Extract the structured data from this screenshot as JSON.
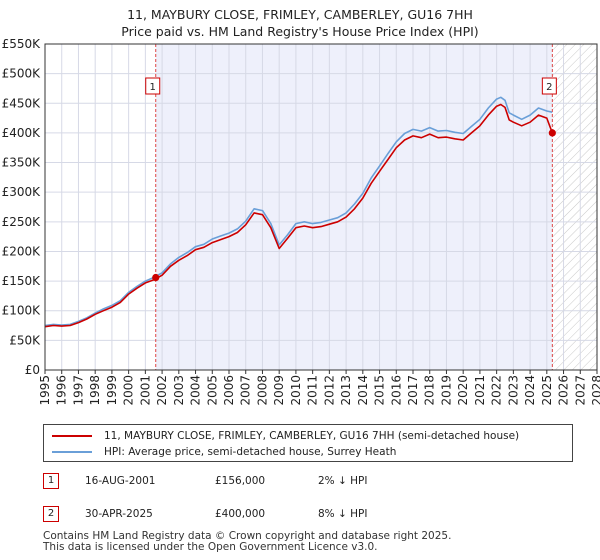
{
  "title_line1": "11, MAYBURY CLOSE, FRIMLEY, CAMBERLEY, GU16 7HH",
  "title_line2": "Price paid vs. HM Land Registry's House Price Index (HPI)",
  "colors": {
    "property": "#cc0000",
    "hpi": "#6a9fd8",
    "shade": "#eef0fb",
    "grid": "#d6d9e6"
  },
  "chart_data": {
    "type": "line",
    "title": "11, MAYBURY CLOSE, FRIMLEY, CAMBERLEY, GU16 7HH — Price paid vs. HM Land Registry's House Price Index (HPI)",
    "xlabel": "",
    "ylabel": "",
    "xlim": [
      1995,
      2028
    ],
    "ylim": [
      0,
      550000
    ],
    "x_ticks": [
      1995,
      1996,
      1997,
      1998,
      1999,
      2000,
      2001,
      2002,
      2003,
      2004,
      2005,
      2006,
      2007,
      2008,
      2009,
      2010,
      2011,
      2012,
      2013,
      2014,
      2015,
      2016,
      2017,
      2018,
      2019,
      2020,
      2021,
      2022,
      2023,
      2024,
      2025,
      2026,
      2027,
      2028
    ],
    "y_ticks": [
      {
        "value": 0,
        "label": "£0"
      },
      {
        "value": 50000,
        "label": "£50K"
      },
      {
        "value": 100000,
        "label": "£100K"
      },
      {
        "value": 150000,
        "label": "£150K"
      },
      {
        "value": 200000,
        "label": "£200K"
      },
      {
        "value": 250000,
        "label": "£250K"
      },
      {
        "value": 300000,
        "label": "£300K"
      },
      {
        "value": 350000,
        "label": "£350K"
      },
      {
        "value": 400000,
        "label": "£400K"
      },
      {
        "value": 450000,
        "label": "£450K"
      },
      {
        "value": 500000,
        "label": "£500K"
      },
      {
        "value": 550000,
        "label": "£550K"
      }
    ],
    "shaded_region": [
      2001.62,
      2025.33
    ],
    "hatched_region": [
      2025.33,
      2028
    ],
    "series": [
      {
        "name": "11, MAYBURY CLOSE, FRIMLEY, CAMBERLEY, GU16 7HH (semi-detached house)",
        "color": "#cc0000",
        "x": [
          1995.0,
          1995.5,
          1996.0,
          1996.5,
          1997.0,
          1997.5,
          1998.0,
          1998.5,
          1999.0,
          1999.5,
          2000.0,
          2000.5,
          2001.0,
          2001.5,
          2002.0,
          2002.5,
          2003.0,
          2003.5,
          2004.0,
          2004.5,
          2005.0,
          2005.5,
          2006.0,
          2006.5,
          2007.0,
          2007.5,
          2008.0,
          2008.5,
          2009.0,
          2009.5,
          2010.0,
          2010.5,
          2011.0,
          2011.5,
          2012.0,
          2012.5,
          2013.0,
          2013.5,
          2014.0,
          2014.5,
          2015.0,
          2015.5,
          2016.0,
          2016.5,
          2017.0,
          2017.5,
          2018.0,
          2018.5,
          2019.0,
          2019.5,
          2020.0,
          2020.5,
          2021.0,
          2021.5,
          2022.0,
          2022.25,
          2022.5,
          2022.75,
          2023.0,
          2023.5,
          2024.0,
          2024.5,
          2025.0,
          2025.33
        ],
        "values": [
          73000,
          75000,
          74000,
          75000,
          80000,
          86000,
          94000,
          100000,
          106000,
          114000,
          128000,
          138000,
          147000,
          152000,
          160000,
          175000,
          185000,
          193000,
          203000,
          207000,
          215000,
          220000,
          225000,
          232000,
          245000,
          265000,
          262000,
          240000,
          205000,
          222000,
          240000,
          243000,
          240000,
          242000,
          246000,
          250000,
          258000,
          272000,
          290000,
          315000,
          335000,
          355000,
          375000,
          388000,
          395000,
          392000,
          398000,
          392000,
          393000,
          390000,
          388000,
          400000,
          412000,
          430000,
          445000,
          448000,
          443000,
          422000,
          418000,
          412000,
          418000,
          430000,
          425000,
          400000
        ]
      },
      {
        "name": "HPI: Average price, semi-detached house, Surrey Heath",
        "color": "#6a9fd8",
        "x": [
          1995.0,
          1995.5,
          1996.0,
          1996.5,
          1997.0,
          1997.5,
          1998.0,
          1998.5,
          1999.0,
          1999.5,
          2000.0,
          2000.5,
          2001.0,
          2001.5,
          2002.0,
          2002.5,
          2003.0,
          2003.5,
          2004.0,
          2004.5,
          2005.0,
          2005.5,
          2006.0,
          2006.5,
          2007.0,
          2007.5,
          2008.0,
          2008.5,
          2009.0,
          2009.5,
          2010.0,
          2010.5,
          2011.0,
          2011.5,
          2012.0,
          2012.5,
          2013.0,
          2013.5,
          2014.0,
          2014.5,
          2015.0,
          2015.5,
          2016.0,
          2016.5,
          2017.0,
          2017.5,
          2018.0,
          2018.5,
          2019.0,
          2019.5,
          2020.0,
          2020.5,
          2021.0,
          2021.5,
          2022.0,
          2022.25,
          2022.5,
          2022.75,
          2023.0,
          2023.5,
          2024.0,
          2024.5,
          2025.0,
          2025.33
        ],
        "values": [
          75000,
          77000,
          76000,
          77000,
          82000,
          88000,
          96000,
          103000,
          109000,
          117000,
          131000,
          141000,
          150000,
          156000,
          164000,
          179000,
          190000,
          198000,
          208000,
          212000,
          221000,
          226000,
          231000,
          238000,
          251000,
          272000,
          269000,
          247000,
          211000,
          228000,
          247000,
          250000,
          247000,
          249000,
          253000,
          257000,
          265000,
          280000,
          298000,
          324000,
          344000,
          365000,
          385000,
          399000,
          406000,
          403000,
          409000,
          403000,
          404000,
          401000,
          399000,
          411000,
          423000,
          442000,
          457000,
          460000,
          455000,
          434000,
          430000,
          423000,
          430000,
          442000,
          437000,
          435000
        ]
      }
    ],
    "sales": [
      {
        "marker": "1",
        "x": 2001.62,
        "value": 156000,
        "date": "16-AUG-2001",
        "price": "£156,000",
        "hpi_diff": "2% ↓ HPI"
      },
      {
        "marker": "2",
        "x": 2025.33,
        "value": 400000,
        "date": "30-APR-2025",
        "price": "£400,000",
        "hpi_diff": "8% ↓ HPI"
      }
    ]
  },
  "legend": {
    "property_label": "11, MAYBURY CLOSE, FRIMLEY, CAMBERLEY, GU16 7HH (semi-detached house)",
    "hpi_label": "HPI: Average price, semi-detached house, Surrey Heath"
  },
  "footer": {
    "line1": "Contains HM Land Registry data © Crown copyright and database right 2025.",
    "line2": "This data is licensed under the Open Government Licence v3.0."
  }
}
